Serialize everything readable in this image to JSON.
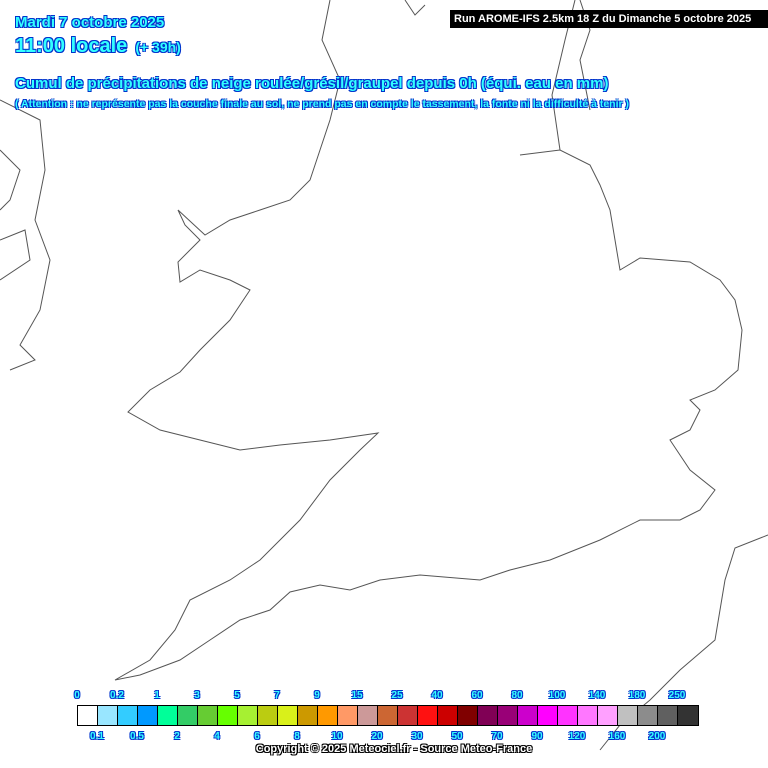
{
  "header": {
    "date": "Mardi 7 octobre 2025",
    "time": "11:00 locale",
    "lead": "(+ 39h)",
    "title": "Cumul de précipitations de neige roulée/grésil/graupel depuis 0h (équi. eau en mm)",
    "note": "( Attention : ne représente pas la couche finale au sol, ne prend pas en compte le tassement, la fonte ni la difficulté à tenir )",
    "run": "Run AROME-IFS 2.5km 18 Z du Dimanche 5 octobre 2025"
  },
  "legend": {
    "labels": [
      "0",
      "0.1",
      "0.2",
      "0.5",
      "1",
      "2",
      "3",
      "4",
      "5",
      "6",
      "7",
      "8",
      "9",
      "10",
      "15",
      "20",
      "25",
      "30",
      "40",
      "50",
      "60",
      "70",
      "80",
      "90",
      "100",
      "120",
      "140",
      "160",
      "180",
      "200",
      "250"
    ],
    "colors": [
      "#ffffff",
      "#99e6ff",
      "#33ccff",
      "#0099ff",
      "#00ff99",
      "#33cc66",
      "#66cc33",
      "#66ff00",
      "#a6f032",
      "#bbcc11",
      "#d9f01a",
      "#cc9900",
      "#ff9900",
      "#ff9966",
      "#cc9999",
      "#cc6633",
      "#cc3333",
      "#ff1111",
      "#cc0000",
      "#800000",
      "#800055",
      "#990077",
      "#cc00cc",
      "#ff00ff",
      "#ff33ff",
      "#ff77ff",
      "#ffa0ff",
      "#c0c0c0",
      "#8c8c8c",
      "#606060",
      "#333333"
    ]
  },
  "map": {
    "coast_color": "#555555",
    "background": "#ffffff"
  },
  "copyright": "Copyright © 2025 Meteociel.fr - Source Meteo-France"
}
